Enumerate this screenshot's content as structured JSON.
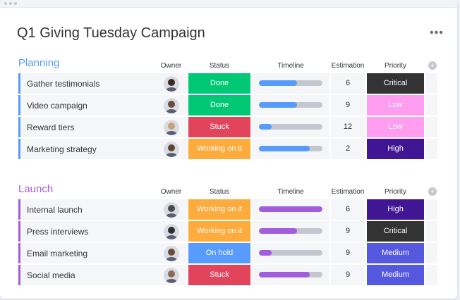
{
  "title": "Q1 Giving Tuesday Campaign",
  "more_label": "•••",
  "columns": {
    "owner": "Owner",
    "status": "Status",
    "timeline": "Timeline",
    "estimation": "Estimation",
    "priority": "Priority"
  },
  "add_column_label": "+",
  "colors": {
    "done": "#00c875",
    "stuck": "#e2445c",
    "working": "#fdab3d",
    "on_hold": "#579bfc",
    "critical": "#333333",
    "low": "#ff9ef0",
    "high": "#401694",
    "medium": "#5559df",
    "planning": "#579bfc",
    "launch": "#a25ddc"
  },
  "groups": [
    {
      "title": "Planning",
      "color": "#579bfc",
      "rows": [
        {
          "name": "Gather testimonials",
          "owner_icon": "avatar-icon",
          "status": "Done",
          "status_color": "#00c875",
          "timeline": 0.6,
          "estimation": "6",
          "priority": "Critical",
          "priority_color": "#333333"
        },
        {
          "name": "Video campaign",
          "owner_icon": "avatar-icon",
          "status": "Done",
          "status_color": "#00c875",
          "timeline": 0.6,
          "estimation": "9",
          "priority": "Low",
          "priority_color": "#ff9ef0"
        },
        {
          "name": "Reward tiers",
          "owner_icon": "avatar-icon",
          "status": "Stuck",
          "status_color": "#e2445c",
          "timeline": 0.2,
          "estimation": "12",
          "priority": "Low",
          "priority_color": "#ff9ef0"
        },
        {
          "name": "Marketing strategy",
          "owner_icon": "avatar-icon",
          "status": "Working on it",
          "status_color": "#fdab3d",
          "timeline": 0.8,
          "estimation": "2",
          "priority": "High",
          "priority_color": "#401694"
        }
      ]
    },
    {
      "title": "Launch",
      "color": "#a25ddc",
      "rows": [
        {
          "name": "Internal launch",
          "owner_icon": "avatar-icon",
          "status": "Working on it",
          "status_color": "#fdab3d",
          "timeline": 1.0,
          "estimation": "6",
          "priority": "High",
          "priority_color": "#401694"
        },
        {
          "name": "Press interviews",
          "owner_icon": "avatar-icon",
          "status": "Working on it",
          "status_color": "#fdab3d",
          "timeline": 0.6,
          "estimation": "9",
          "priority": "Critical",
          "priority_color": "#333333"
        },
        {
          "name": "Email marketing",
          "owner_icon": "avatar-icon",
          "status": "On hold",
          "status_color": "#579bfc",
          "timeline": 0.2,
          "estimation": "9",
          "priority": "Medium",
          "priority_color": "#5559df"
        },
        {
          "name": "Social media",
          "owner_icon": "avatar-icon",
          "status": "Stuck",
          "status_color": "#e2445c",
          "timeline": 0.8,
          "estimation": "9",
          "priority": "Medium",
          "priority_color": "#5559df"
        }
      ]
    }
  ]
}
